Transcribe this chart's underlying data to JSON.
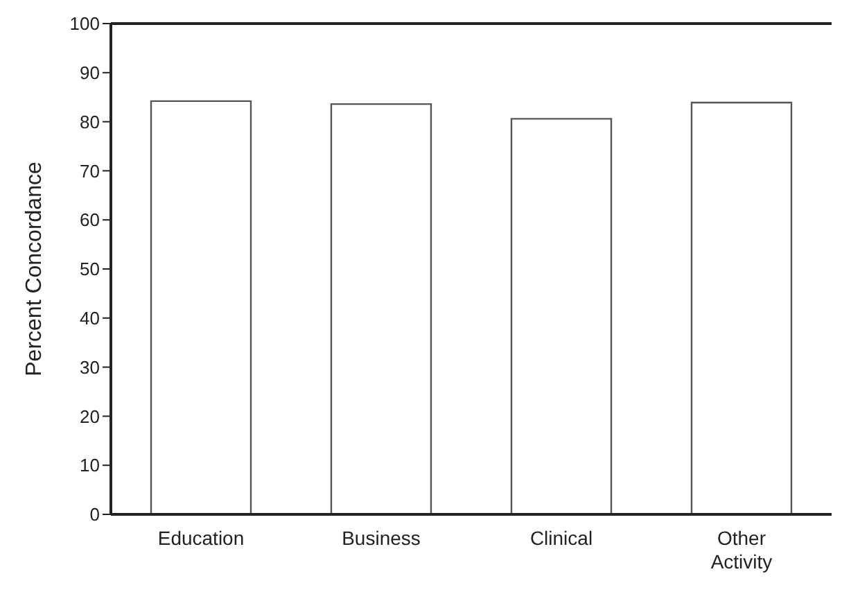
{
  "chart_data": {
    "type": "bar",
    "ylabel": "Percent Concordance",
    "categories": [
      "Education",
      "Business",
      "Clinical",
      "Other Activity"
    ],
    "values": [
      84.2,
      83.6,
      80.6,
      83.9
    ],
    "color": "#ffffff",
    "ylim": [
      0,
      100
    ],
    "yticks": [
      0,
      10,
      20,
      30,
      40,
      50,
      60,
      70,
      80,
      90,
      100
    ],
    "grid": false
  }
}
